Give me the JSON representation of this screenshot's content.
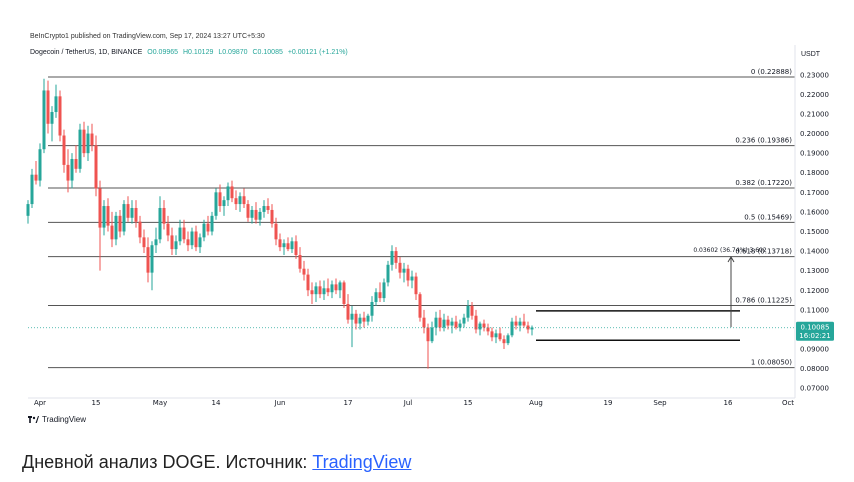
{
  "header": {
    "publisher": "BeInCrypto1 published on TradingView.com, Sep 17, 2024 13:27 UTC+5:30",
    "symbol": "Dogecoin / TetherUS, 1D, BINANCE",
    "ohlc": {
      "o_label": "O",
      "o": "0.09965",
      "h_label": "H",
      "h": "0.10129",
      "l_label": "L",
      "l": "0.09870",
      "c_label": "C",
      "c": "0.10085",
      "change": "+0.00121 (+1.21%)"
    },
    "currency": "USDT"
  },
  "colors": {
    "up": "#26a69a",
    "down": "#ef5350",
    "fib": "#555555",
    "axis": "#787b86",
    "price_tag": "#26a69a"
  },
  "chart_data": {
    "type": "candlestick",
    "title": "",
    "y_axis": {
      "min": 0.065,
      "max": 0.235,
      "ticks": [
        "0.23000",
        "0.22000",
        "0.21000",
        "0.20000",
        "0.19000",
        "0.18000",
        "0.17000",
        "0.16000",
        "0.15000",
        "0.14000",
        "0.13000",
        "0.12000",
        "0.11000",
        "0.10000",
        "0.09000",
        "0.08000",
        "0.07000"
      ],
      "tick_values": [
        0.23,
        0.22,
        0.21,
        0.2,
        0.19,
        0.18,
        0.17,
        0.16,
        0.15,
        0.14,
        0.13,
        0.12,
        0.11,
        0.1,
        0.09,
        0.08,
        0.07
      ]
    },
    "x_axis": {
      "labels": [
        "Apr",
        "15",
        "May",
        "14",
        "Jun",
        "17",
        "Jul",
        "15",
        "Aug",
        "19",
        "Sep",
        "16",
        "Oct"
      ],
      "label_days": [
        3,
        17,
        33,
        47,
        63,
        80,
        95,
        110,
        127,
        145,
        158,
        175,
        190
      ]
    },
    "fib_levels": [
      {
        "label": "0 (0.22888)",
        "value": 0.22888
      },
      {
        "label": "0.236 (0.19386)",
        "value": 0.19386
      },
      {
        "label": "0.382 (0.17220)",
        "value": 0.1722
      },
      {
        "label": "0.5 (0.15469)",
        "value": 0.15469
      },
      {
        "label": "0.618 (0.13718)",
        "value": 0.13718
      },
      {
        "label": "0.786 (0.11225)",
        "value": 0.11225
      },
      {
        "label": "1 (0.08050)",
        "value": 0.0805
      }
    ],
    "measure_annotation": "0.03602 (36.74%) 3,602",
    "current_price": {
      "value": 0.10085,
      "label": "0.10085",
      "timer": "16:02:21"
    },
    "range_box": {
      "top": 0.1095,
      "bottom": 0.0945,
      "start_day": 127,
      "end_day": 178
    },
    "candles": [
      [
        0.158,
        0.166,
        0.154,
        0.164
      ],
      [
        0.164,
        0.182,
        0.162,
        0.179
      ],
      [
        0.179,
        0.186,
        0.174,
        0.176
      ],
      [
        0.176,
        0.195,
        0.173,
        0.192
      ],
      [
        0.192,
        0.228,
        0.19,
        0.222
      ],
      [
        0.222,
        0.227,
        0.2,
        0.205
      ],
      [
        0.205,
        0.214,
        0.196,
        0.211
      ],
      [
        0.211,
        0.225,
        0.208,
        0.219
      ],
      [
        0.219,
        0.222,
        0.196,
        0.199
      ],
      [
        0.199,
        0.202,
        0.18,
        0.184
      ],
      [
        0.184,
        0.192,
        0.17,
        0.176
      ],
      [
        0.176,
        0.19,
        0.172,
        0.187
      ],
      [
        0.187,
        0.194,
        0.18,
        0.182
      ],
      [
        0.182,
        0.205,
        0.18,
        0.202
      ],
      [
        0.202,
        0.206,
        0.188,
        0.19
      ],
      [
        0.19,
        0.204,
        0.186,
        0.2
      ],
      [
        0.2,
        0.205,
        0.191,
        0.194
      ],
      [
        0.194,
        0.199,
        0.168,
        0.172
      ],
      [
        0.172,
        0.176,
        0.13,
        0.152
      ],
      [
        0.152,
        0.166,
        0.148,
        0.163
      ],
      [
        0.163,
        0.167,
        0.15,
        0.153
      ],
      [
        0.153,
        0.16,
        0.142,
        0.146
      ],
      [
        0.146,
        0.16,
        0.143,
        0.158
      ],
      [
        0.158,
        0.161,
        0.147,
        0.15
      ],
      [
        0.15,
        0.166,
        0.148,
        0.164
      ],
      [
        0.164,
        0.168,
        0.155,
        0.157
      ],
      [
        0.157,
        0.166,
        0.154,
        0.162
      ],
      [
        0.162,
        0.166,
        0.152,
        0.155
      ],
      [
        0.155,
        0.158,
        0.144,
        0.147
      ],
      [
        0.147,
        0.151,
        0.139,
        0.142
      ],
      [
        0.142,
        0.147,
        0.124,
        0.129
      ],
      [
        0.129,
        0.145,
        0.12,
        0.143
      ],
      [
        0.143,
        0.152,
        0.139,
        0.146
      ],
      [
        0.146,
        0.168,
        0.144,
        0.162
      ],
      [
        0.162,
        0.166,
        0.151,
        0.154
      ],
      [
        0.154,
        0.158,
        0.145,
        0.148
      ],
      [
        0.148,
        0.152,
        0.138,
        0.141
      ],
      [
        0.141,
        0.148,
        0.138,
        0.145
      ],
      [
        0.145,
        0.156,
        0.143,
        0.152
      ],
      [
        0.152,
        0.156,
        0.144,
        0.146
      ],
      [
        0.146,
        0.15,
        0.14,
        0.143
      ],
      [
        0.143,
        0.152,
        0.141,
        0.15
      ],
      [
        0.15,
        0.153,
        0.14,
        0.142
      ],
      [
        0.142,
        0.149,
        0.139,
        0.147
      ],
      [
        0.147,
        0.156,
        0.145,
        0.154
      ],
      [
        0.154,
        0.158,
        0.148,
        0.15
      ],
      [
        0.15,
        0.16,
        0.148,
        0.158
      ],
      [
        0.158,
        0.172,
        0.156,
        0.17
      ],
      [
        0.17,
        0.174,
        0.16,
        0.163
      ],
      [
        0.163,
        0.168,
        0.158,
        0.166
      ],
      [
        0.166,
        0.175,
        0.163,
        0.173
      ],
      [
        0.173,
        0.176,
        0.165,
        0.167
      ],
      [
        0.167,
        0.171,
        0.161,
        0.164
      ],
      [
        0.164,
        0.17,
        0.16,
        0.168
      ],
      [
        0.168,
        0.172,
        0.162,
        0.164
      ],
      [
        0.164,
        0.166,
        0.155,
        0.157
      ],
      [
        0.157,
        0.163,
        0.154,
        0.161
      ],
      [
        0.161,
        0.165,
        0.154,
        0.156
      ],
      [
        0.156,
        0.162,
        0.153,
        0.16
      ],
      [
        0.16,
        0.166,
        0.157,
        0.163
      ],
      [
        0.163,
        0.167,
        0.159,
        0.161
      ],
      [
        0.161,
        0.164,
        0.152,
        0.154
      ],
      [
        0.154,
        0.157,
        0.143,
        0.146
      ],
      [
        0.146,
        0.149,
        0.14,
        0.142
      ],
      [
        0.142,
        0.146,
        0.138,
        0.144
      ],
      [
        0.144,
        0.147,
        0.14,
        0.141
      ],
      [
        0.141,
        0.147,
        0.139,
        0.145
      ],
      [
        0.145,
        0.148,
        0.136,
        0.138
      ],
      [
        0.138,
        0.142,
        0.129,
        0.131
      ],
      [
        0.131,
        0.135,
        0.125,
        0.128
      ],
      [
        0.128,
        0.131,
        0.117,
        0.12
      ],
      [
        0.12,
        0.124,
        0.113,
        0.118
      ],
      [
        0.118,
        0.124,
        0.114,
        0.122
      ],
      [
        0.122,
        0.125,
        0.116,
        0.118
      ],
      [
        0.118,
        0.125,
        0.115,
        0.121
      ],
      [
        0.121,
        0.126,
        0.117,
        0.119
      ],
      [
        0.119,
        0.125,
        0.116,
        0.123
      ],
      [
        0.123,
        0.126,
        0.118,
        0.12
      ],
      [
        0.12,
        0.125,
        0.116,
        0.124
      ],
      [
        0.124,
        0.125,
        0.111,
        0.113
      ],
      [
        0.113,
        0.118,
        0.103,
        0.105
      ],
      [
        0.105,
        0.112,
        0.091,
        0.108
      ],
      [
        0.108,
        0.11,
        0.1,
        0.103
      ],
      [
        0.103,
        0.108,
        0.1,
        0.106
      ],
      [
        0.106,
        0.109,
        0.101,
        0.104
      ],
      [
        0.104,
        0.108,
        0.102,
        0.107
      ],
      [
        0.107,
        0.117,
        0.104,
        0.114
      ],
      [
        0.114,
        0.121,
        0.112,
        0.119
      ],
      [
        0.119,
        0.124,
        0.114,
        0.116
      ],
      [
        0.116,
        0.126,
        0.114,
        0.124
      ],
      [
        0.124,
        0.135,
        0.122,
        0.133
      ],
      [
        0.133,
        0.143,
        0.13,
        0.14
      ],
      [
        0.14,
        0.142,
        0.131,
        0.134
      ],
      [
        0.134,
        0.137,
        0.126,
        0.129
      ],
      [
        0.129,
        0.134,
        0.124,
        0.131
      ],
      [
        0.131,
        0.133,
        0.122,
        0.125
      ],
      [
        0.125,
        0.13,
        0.121,
        0.127
      ],
      [
        0.127,
        0.129,
        0.115,
        0.118
      ],
      [
        0.118,
        0.119,
        0.104,
        0.106
      ],
      [
        0.106,
        0.11,
        0.098,
        0.101
      ],
      [
        0.101,
        0.103,
        0.08,
        0.094
      ],
      [
        0.094,
        0.104,
        0.093,
        0.101
      ],
      [
        0.101,
        0.109,
        0.097,
        0.106
      ],
      [
        0.106,
        0.11,
        0.099,
        0.101
      ],
      [
        0.101,
        0.108,
        0.099,
        0.105
      ],
      [
        0.105,
        0.107,
        0.1,
        0.102
      ],
      [
        0.102,
        0.106,
        0.098,
        0.104
      ],
      [
        0.104,
        0.107,
        0.1,
        0.101
      ],
      [
        0.101,
        0.105,
        0.099,
        0.103
      ],
      [
        0.103,
        0.108,
        0.101,
        0.106
      ],
      [
        0.106,
        0.115,
        0.104,
        0.112
      ],
      [
        0.112,
        0.114,
        0.105,
        0.107
      ],
      [
        0.107,
        0.11,
        0.098,
        0.1
      ],
      [
        0.1,
        0.104,
        0.097,
        0.103
      ],
      [
        0.103,
        0.105,
        0.099,
        0.101
      ],
      [
        0.101,
        0.103,
        0.097,
        0.099
      ],
      [
        0.099,
        0.101,
        0.094,
        0.096
      ],
      [
        0.096,
        0.1,
        0.093,
        0.098
      ],
      [
        0.098,
        0.101,
        0.094,
        0.095
      ],
      [
        0.095,
        0.097,
        0.09,
        0.093
      ],
      [
        0.093,
        0.098,
        0.092,
        0.097
      ],
      [
        0.097,
        0.106,
        0.096,
        0.104
      ],
      [
        0.104,
        0.107,
        0.1,
        0.102
      ],
      [
        0.102,
        0.106,
        0.099,
        0.104
      ],
      [
        0.104,
        0.108,
        0.101,
        0.102
      ],
      [
        0.102,
        0.104,
        0.098,
        0.1
      ],
      [
        0.1,
        0.102,
        0.097,
        0.101
      ]
    ]
  },
  "footer": {
    "tv_brand": "TradingView",
    "caption_text": "Дневной анализ DOGE. Источник: ",
    "caption_link": "TradingView"
  }
}
